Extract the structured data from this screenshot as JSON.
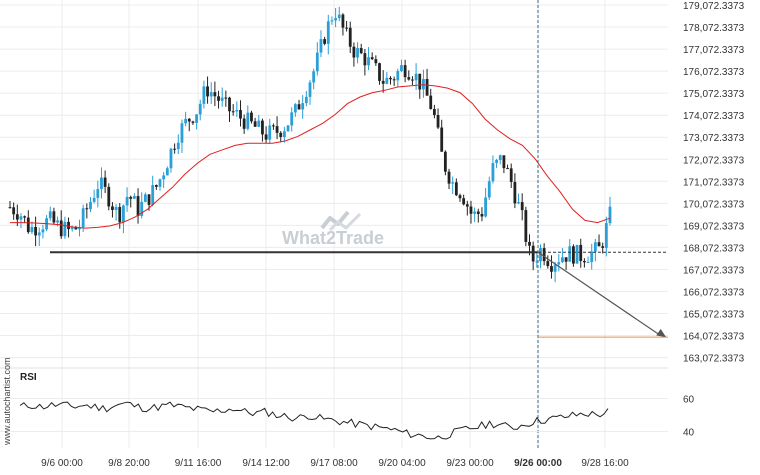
{
  "source": "www.autochartist.com",
  "watermark": "What2Trade",
  "colors": {
    "up": "#2a9fd8",
    "down": "#222222",
    "ma": "#e02020",
    "arrow": "#555555",
    "target": "#e8914c",
    "grid": "#ececec"
  },
  "chart_data": {
    "type": "candlestick",
    "title": "",
    "price_axis": {
      "ticks": [
        179072.3373,
        178072.3373,
        177072.3373,
        176072.3373,
        175072.3373,
        174072.3373,
        173072.3373,
        172072.3373,
        171072.3373,
        170072.3373,
        169072.3373,
        168072.3373,
        167072.3373,
        166072.3373,
        165072.3373,
        164072.3373,
        163072.3373
      ],
      "range": [
        162600,
        179300
      ]
    },
    "time_axis": {
      "labels": [
        "9/6 00:00",
        "9/8 20:00",
        "9/11 16:00",
        "9/14 12:00",
        "9/17 08:00",
        "9/20 04:00",
        "9/23 00:00",
        "9/26 00:00",
        "9/28 16:00"
      ]
    },
    "support_level": 167850,
    "current_price": 167850,
    "projection_start": {
      "x": "9/26 00:00",
      "y": 167850
    },
    "projection_target": {
      "x": "9/30 12:00",
      "y": 164000
    },
    "target_level": 164000,
    "close_path": [
      169900,
      169650,
      168900,
      169100,
      169300,
      169000,
      168800,
      169000,
      170000,
      171000,
      170400,
      169500,
      170500,
      169800,
      170300,
      170900,
      172000,
      173200,
      173800,
      174300,
      175300,
      174900,
      174400,
      174100,
      173800,
      173500,
      173200,
      173300,
      173600,
      174200,
      175200,
      176200,
      177700,
      178900,
      177800,
      177000,
      176700,
      176200,
      175600,
      175800,
      176300,
      176000,
      175300,
      174300,
      172000,
      171000,
      170500,
      169500,
      169700,
      171600,
      172100,
      171000,
      169500,
      167400,
      168000,
      167400,
      167700,
      167800,
      167700,
      167800,
      168000,
      169500
    ],
    "ma_path": [
      169200,
      169200,
      169180,
      169150,
      169100,
      169000,
      168950,
      168980,
      169050,
      169200,
      169450,
      169800,
      170300,
      170800,
      171400,
      171900,
      172300,
      172500,
      172700,
      172800,
      172800,
      172800,
      172900,
      173100,
      173400,
      173700,
      174100,
      174600,
      174900,
      175100,
      175200,
      175350,
      175400,
      175450,
      175400,
      175300,
      175100,
      174600,
      173900,
      173400,
      173000,
      172700,
      172100,
      171300,
      170600,
      169800,
      169300,
      169200,
      169400
    ],
    "rsi": {
      "label": "RSI",
      "ticks": [
        60,
        40
      ],
      "range": [
        30,
        70
      ],
      "values": [
        55,
        56,
        55,
        56,
        56,
        55,
        56,
        55,
        54,
        56,
        57,
        55,
        54,
        55,
        56,
        55,
        54,
        53,
        52,
        53,
        54,
        52,
        51,
        52,
        50,
        49,
        48,
        50,
        48,
        47,
        46,
        45,
        44,
        43,
        42,
        41,
        39,
        38,
        37,
        36,
        38,
        40,
        42,
        43,
        45,
        44,
        42,
        44,
        46,
        47,
        48,
        49,
        50,
        51,
        50,
        52
      ]
    }
  }
}
